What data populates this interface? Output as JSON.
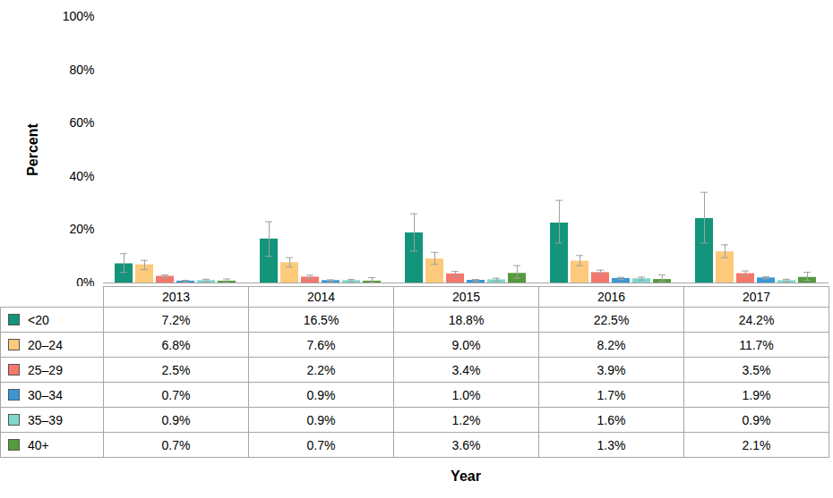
{
  "chart_data": {
    "type": "bar",
    "y_label": "Percent",
    "x_label": "Year",
    "categories": [
      "2013",
      "2014",
      "2015",
      "2016",
      "2017"
    ],
    "series": [
      {
        "name": "<20",
        "color": "#12957a",
        "values": [
          7.2,
          16.5,
          18.8,
          22.5,
          24.2
        ],
        "value_labels": [
          "7.2%",
          "16.5%",
          "18.8%",
          "22.5%",
          "24.2%"
        ],
        "error_low": [
          4,
          10,
          12,
          15,
          15
        ],
        "error_high": [
          11,
          23,
          26,
          31,
          34
        ]
      },
      {
        "name": "20–24",
        "color": "#fdc97a",
        "values": [
          6.8,
          7.6,
          9.0,
          8.2,
          11.7
        ],
        "value_labels": [
          "6.8%",
          "7.6%",
          "9.0%",
          "8.2%",
          "11.7%"
        ],
        "error_low": [
          5,
          6,
          7,
          6.5,
          9.5
        ],
        "error_high": [
          8.5,
          9.5,
          11.5,
          10.3,
          14.3
        ]
      },
      {
        "name": "25–29",
        "color": "#f4776b",
        "values": [
          2.5,
          2.2,
          3.4,
          3.9,
          3.5
        ],
        "value_labels": [
          "2.5%",
          "2.2%",
          "3.4%",
          "3.9%",
          "3.5%"
        ],
        "error_low": [
          2,
          1.6,
          2.5,
          3.2,
          2.7
        ],
        "error_high": [
          3,
          2.9,
          4.3,
          4.8,
          4.5
        ]
      },
      {
        "name": "30–34",
        "color": "#3a97d4",
        "values": [
          0.7,
          0.9,
          1.0,
          1.7,
          1.9
        ],
        "value_labels": [
          "0.7%",
          "0.9%",
          "1.0%",
          "1.7%",
          "1.9%"
        ],
        "error_low": [
          0.4,
          0.6,
          0.7,
          1.3,
          1.5
        ],
        "error_high": [
          1,
          1.2,
          1.3,
          2.1,
          2.3
        ]
      },
      {
        "name": "35–39",
        "color": "#7fd8cc",
        "values": [
          0.9,
          0.9,
          1.2,
          1.6,
          0.9
        ],
        "value_labels": [
          "0.9%",
          "0.9%",
          "1.2%",
          "1.6%",
          "0.9%"
        ],
        "error_low": [
          0.5,
          0.5,
          0.7,
          1.1,
          0.5
        ],
        "error_high": [
          1.4,
          1.3,
          1.8,
          2.2,
          1.4
        ]
      },
      {
        "name": "40+",
        "color": "#559a3c",
        "values": [
          0.7,
          0.7,
          3.6,
          1.3,
          2.1
        ],
        "value_labels": [
          "0.7%",
          "0.7%",
          "3.6%",
          "1.3%",
          "2.1%"
        ],
        "error_low": [
          0.2,
          0.2,
          1.8,
          0.6,
          1
        ],
        "error_high": [
          1.5,
          2,
          6.5,
          3,
          4
        ]
      }
    ],
    "ylim": [
      0,
      100
    ],
    "yticks": [
      {
        "value": 0,
        "label": "0%"
      },
      {
        "value": 20,
        "label": "20%"
      },
      {
        "value": 40,
        "label": "40%"
      },
      {
        "value": 60,
        "label": "60%"
      },
      {
        "value": 80,
        "label": "80%"
      },
      {
        "value": 100,
        "label": "100%"
      }
    ],
    "grid": false
  }
}
